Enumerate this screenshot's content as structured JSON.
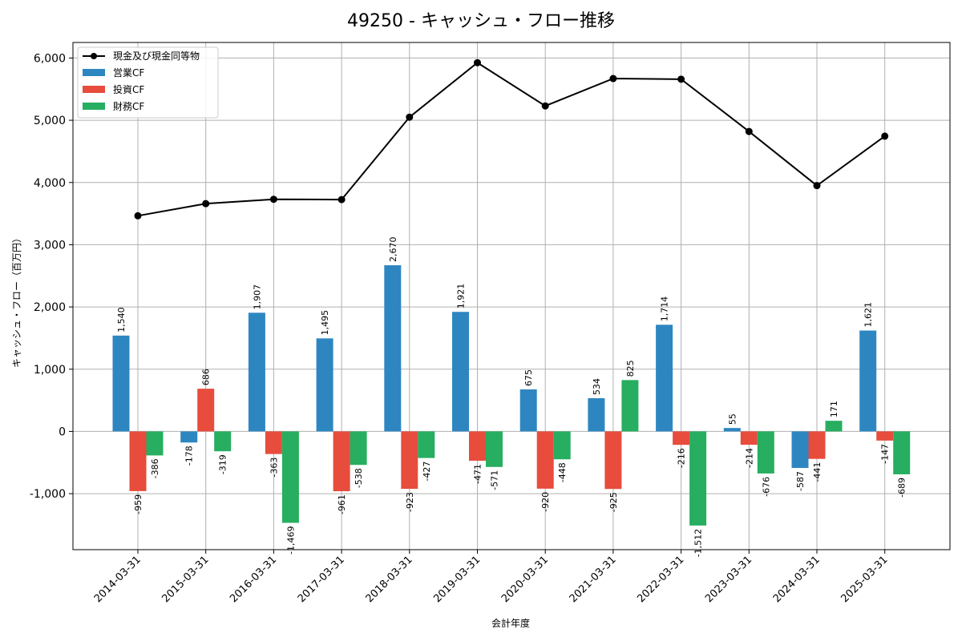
{
  "chart_data": {
    "type": "bar",
    "title": "49250 - キャッシュ・フロー推移",
    "xlabel": "会計年度",
    "ylabel": "キャッシュ・フロー（百万円）",
    "ylim": [
      -1900,
      6250
    ],
    "yticks": [
      -1000,
      0,
      1000,
      2000,
      3000,
      4000,
      5000,
      6000
    ],
    "ytick_labels": [
      "-1,000",
      "0",
      "1,000",
      "2,000",
      "3,000",
      "4,000",
      "5,000",
      "6,000"
    ],
    "grid": true,
    "legend_position": "top-left",
    "categories": [
      "2014-03-31",
      "2015-03-31",
      "2016-03-31",
      "2017-03-31",
      "2018-03-31",
      "2019-03-31",
      "2020-03-31",
      "2021-03-31",
      "2022-03-31",
      "2023-03-31",
      "2024-03-31",
      "2025-03-31"
    ],
    "series": [
      {
        "name": "営業CF",
        "kind": "bar",
        "color": "#2e86c1",
        "values": [
          1540,
          -178,
          1907,
          1495,
          2670,
          1921,
          675,
          534,
          1714,
          55,
          -587,
          1621
        ],
        "labels": [
          "1,540",
          "-178",
          "1,907",
          "1,495",
          "2,670",
          "1,921",
          "675",
          "534",
          "1,714",
          "55",
          "-587",
          "1,621"
        ]
      },
      {
        "name": "投資CF",
        "kind": "bar",
        "color": "#e74c3c",
        "values": [
          -959,
          686,
          -363,
          -961,
          -923,
          -471,
          -920,
          -925,
          -216,
          -214,
          -441,
          -147
        ],
        "labels": [
          "-959",
          "686",
          "-363",
          "-961",
          "-923",
          "-471",
          "-920",
          "-925",
          "-216",
          "-214",
          "-441",
          "-147"
        ]
      },
      {
        "name": "財務CF",
        "kind": "bar",
        "color": "#27ae60",
        "values": [
          -386,
          -319,
          -1469,
          -538,
          -427,
          -571,
          -448,
          825,
          -1512,
          -676,
          171,
          -689
        ],
        "labels": [
          "-386",
          "-319",
          "-1,469",
          "-538",
          "-427",
          "-571",
          "-448",
          "825",
          "-1,512",
          "-676",
          "171",
          "-689"
        ]
      },
      {
        "name": "現金及び現金同等物",
        "kind": "line",
        "color": "#000000",
        "values": [
          3465,
          3660,
          3730,
          3725,
          5050,
          5925,
          5230,
          5670,
          5660,
          4820,
          3950,
          4745
        ]
      }
    ]
  }
}
